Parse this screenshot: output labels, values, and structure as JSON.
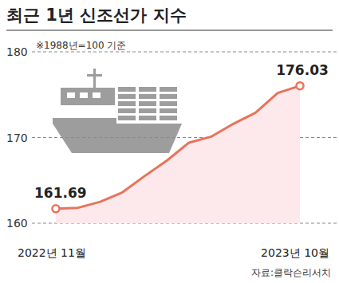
{
  "chart_data": {
    "type": "line",
    "title": "최근 1년 신조선가 지수",
    "subtitle": "※1988년=100 기준",
    "source": "자료:클락슨리서치",
    "categories": [
      "2022년 11월",
      null,
      null,
      null,
      null,
      null,
      null,
      null,
      null,
      null,
      null,
      "2023년 10월"
    ],
    "values": [
      161.69,
      161.8,
      162.5,
      163.6,
      165.5,
      167.3,
      169.4,
      170.1,
      171.6,
      172.9,
      175.2,
      176.03
    ],
    "value_labels": [
      "161.69",
      null,
      null,
      null,
      null,
      null,
      null,
      null,
      null,
      null,
      null,
      "176.03"
    ],
    "data_labels": true,
    "color": "#e8735a",
    "ylim": [
      160,
      180
    ],
    "yticks": [
      160,
      170,
      180
    ],
    "grid": true
  }
}
